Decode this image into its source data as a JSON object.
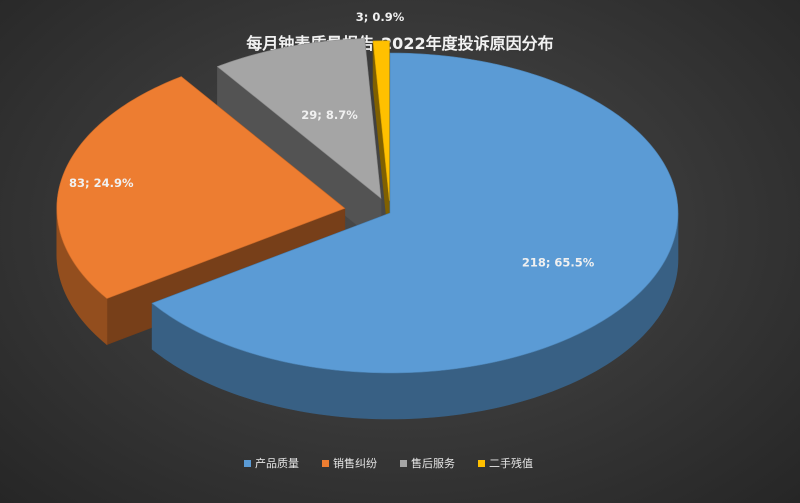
{
  "chart_data": {
    "type": "pie",
    "style": "3d-exploded",
    "title": "每月钟表质量报告-2022年度投诉原因分布",
    "categories": [
      "产品质量",
      "销售纠纷",
      "售后服务",
      "二手残值"
    ],
    "values": [
      218,
      83,
      29,
      3
    ],
    "percents": [
      "65.5%",
      "24.9%",
      "8.7%",
      "0.9%"
    ],
    "data_labels": [
      "218; 65.5%",
      "83; 24.9%",
      "29; 8.7%",
      "3; 0.9%"
    ],
    "colors": [
      "#5b9bd5",
      "#ed7d31",
      "#a5a5a5",
      "#ffc000"
    ],
    "legend_position": "bottom"
  }
}
